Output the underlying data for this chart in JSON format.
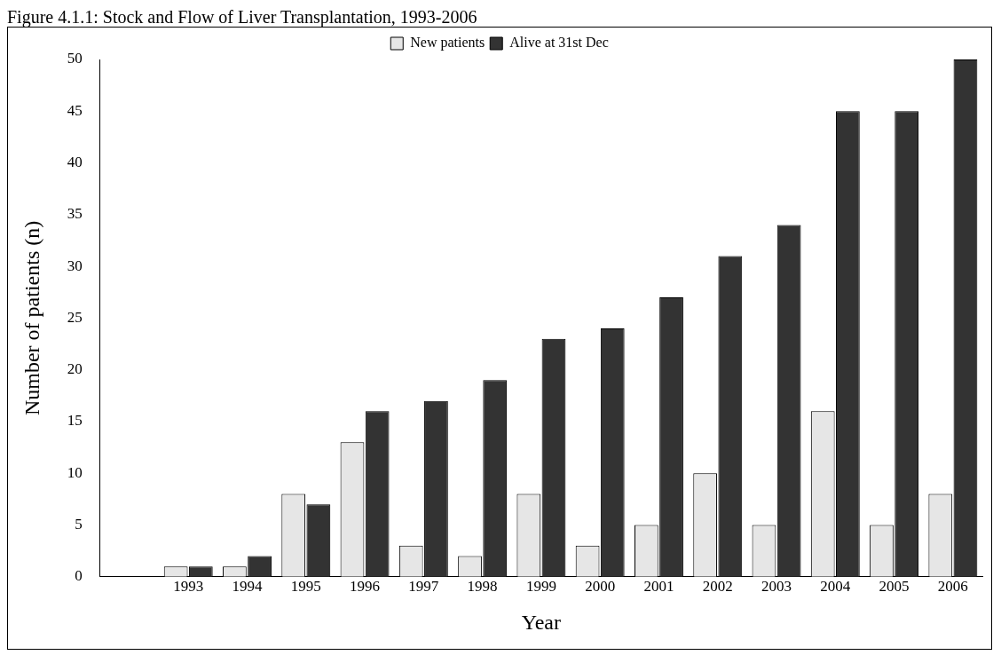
{
  "chart_data": {
    "type": "bar",
    "title": "Figure 4.1.1: Stock and Flow of Liver Transplantation, 1993-2006",
    "xlabel": "Year",
    "ylabel": "Number of patients (n)",
    "categories": [
      null,
      "1993",
      "1994",
      "1995",
      "1996",
      "1997",
      "1998",
      "1999",
      "2000",
      "2001",
      "2002",
      "2003",
      "2004",
      "2005",
      "2006"
    ],
    "series": [
      {
        "name": "New patients",
        "color": "#e6e6e6",
        "values": [
          null,
          1,
          1,
          8,
          13,
          3,
          2,
          8,
          3,
          5,
          10,
          5,
          16,
          5,
          8
        ]
      },
      {
        "name": "Alive at 31st Dec",
        "color": "#333333",
        "values": [
          null,
          1,
          2,
          7,
          16,
          17,
          19,
          23,
          24,
          27,
          31,
          34,
          45,
          45,
          50
        ]
      }
    ],
    "ylim": [
      0,
      50
    ],
    "yticks": [
      0,
      5,
      10,
      15,
      20,
      25,
      30,
      35,
      40,
      45,
      50
    ],
    "grid": false,
    "legend": "top"
  }
}
